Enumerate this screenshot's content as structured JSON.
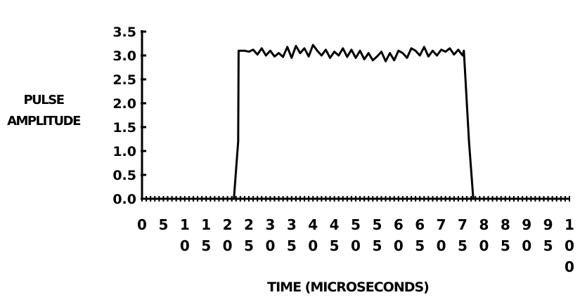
{
  "chart_data": {
    "type": "line",
    "title": "",
    "ylabel_lines": [
      "PULSE",
      "AMPLITUDE"
    ],
    "xlabel": "TIME (MICROSECONDS)",
    "ylim": [
      0,
      3.5
    ],
    "yticks": [
      "0.0",
      "0.5",
      "1.0",
      "1.5",
      "2.0",
      "2.5",
      "3.0",
      "3.5"
    ],
    "xlim": [
      0,
      100
    ],
    "xticks": [
      "0",
      "5",
      "10",
      "15",
      "20",
      "25",
      "30",
      "35",
      "40",
      "45",
      "50",
      "55",
      "60",
      "65",
      "70",
      "75",
      "80",
      "85",
      "90",
      "95",
      "100"
    ],
    "grid": false,
    "series": [
      {
        "x": [
          0,
          20,
          21.5,
          22.5,
          22.6,
          24,
          25,
          26,
          27,
          28,
          29,
          30,
          31,
          32,
          33,
          34,
          35,
          36,
          37,
          38,
          39,
          40,
          41,
          42,
          43,
          44,
          45,
          46,
          47,
          48,
          49,
          50,
          51,
          52,
          53,
          54,
          55,
          56,
          57,
          58,
          59,
          60,
          61,
          62,
          63,
          64,
          65,
          66,
          67,
          68,
          69,
          70,
          71,
          72,
          73,
          74,
          75,
          75.3,
          76.5,
          77.5,
          78.5,
          100
        ],
        "y": [
          0,
          0,
          0,
          1.2,
          3.1,
          3.1,
          3.08,
          3.12,
          3.02,
          3.15,
          3.0,
          3.1,
          2.98,
          3.05,
          2.97,
          3.18,
          2.95,
          3.2,
          3.05,
          3.15,
          2.98,
          3.22,
          3.1,
          3.0,
          3.12,
          2.95,
          3.08,
          3.0,
          3.15,
          2.97,
          3.12,
          2.95,
          3.1,
          2.92,
          3.05,
          2.9,
          2.98,
          3.08,
          2.88,
          3.05,
          2.9,
          3.1,
          3.05,
          2.95,
          3.15,
          3.1,
          3.0,
          3.18,
          2.98,
          3.1,
          3.0,
          3.12,
          3.08,
          3.15,
          3.02,
          3.12,
          3.0,
          3.1,
          1.2,
          0,
          0,
          0
        ]
      }
    ]
  }
}
